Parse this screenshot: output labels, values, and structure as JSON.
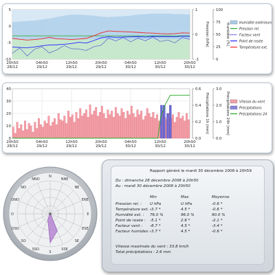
{
  "colors": {
    "humidity": "#7fb2e0",
    "pressure": "#22aa22",
    "wind_factor": "#3333cc",
    "dew_point": "#2222ff",
    "temperature": "#ee2222",
    "wind_speed": "#ee6677",
    "precip": "#4444cc",
    "precip24": "#22aa22"
  },
  "chart_data": [
    {
      "type": "line",
      "x_ticks": [
        "20h50\n28/12",
        "04h50\n29/12",
        "12h50\n29/12",
        "20h50\n29/12",
        "04h50\n30/12",
        "12h50\n30/12",
        "20h50\n30/12"
      ],
      "y_left_ticks": [
        "-10",
        "-5",
        "0",
        "5"
      ],
      "y_right1_ticks": [
        "-1",
        "0",
        "1"
      ],
      "y_right1_label": "Pression (hPa)",
      "y_right2_ticks": [
        "0",
        "25",
        "50",
        "75",
        "100"
      ],
      "y_right2_label": "Humidité (%)",
      "legend": [
        "Humidité extérieure",
        "Pression rel.",
        "Facteur vent",
        "Point de rosée",
        "Température ext."
      ],
      "series": [
        {
          "name": "Humidité extérieure",
          "values": [
            75,
            76,
            77,
            78,
            80,
            82,
            85,
            88,
            90,
            90,
            89,
            88,
            86,
            85,
            86,
            87,
            88,
            90,
            91,
            92,
            92,
            92,
            91,
            91,
            90
          ]
        },
        {
          "name": "Température ext.",
          "values": [
            -1.6,
            -2.0,
            -2.3,
            -2.1,
            -1.8,
            -1.2,
            -1.8,
            -1.9,
            -2.1,
            -1.9,
            -1.6,
            -0.6,
            0.6,
            1.4,
            1.2,
            1.1,
            1.0,
            0.8,
            0.6,
            0.5,
            0.3,
            0.2,
            0.3,
            0.6,
            0.5
          ]
        },
        {
          "name": "Point de rosée",
          "values": [
            -5.1,
            -5.3,
            -5.4,
            -5.1,
            -4.6,
            -4.3,
            -4.2,
            -4.0,
            -3.7,
            -3.2,
            -3.5,
            -2.5,
            -1.4,
            -1.0,
            -1.2,
            -1.1,
            -1.0,
            -0.9,
            -1.1,
            -0.8,
            -0.9,
            -0.9,
            -1.0,
            -0.7,
            -0.8
          ]
        },
        {
          "name": "Facteur vent",
          "values": [
            -7.6,
            -5.5,
            -8.7,
            -6.0,
            -5.0,
            -7.5,
            -6.3,
            -4.5,
            -5.8,
            -5.9,
            -6.5,
            -5.0,
            -4.4,
            -1.5,
            -2.7,
            -1.2,
            -3.0,
            -1.5,
            -2.6,
            -1.0,
            -2.9,
            -2.3,
            -3.4,
            -1.2,
            -2.0
          ]
        }
      ]
    },
    {
      "type": "bar",
      "x_ticks": [
        "20h50\n28/12",
        "04h50\n29/12",
        "12h50\n29/12",
        "20h50\n29/12",
        "04h50\n30/12",
        "12h50\n30/12",
        "20h50\n30/12"
      ],
      "y_left_ticks": [
        "0",
        "10",
        "20",
        "30",
        "40"
      ],
      "y_right1_ticks": [
        "0.0",
        "0.2",
        "0.4",
        "0.6"
      ],
      "y_right1_label": "Précipitations 1h (mm)",
      "y_right2_ticks": [
        "0.0",
        "1.0",
        "2.0",
        "3.0"
      ],
      "y_right2_label": "Précipitations 24h (mm)",
      "legend": [
        "Vitesse du vent",
        "Précipitations",
        "Précipitations 24"
      ],
      "series": [
        {
          "name": "Vitesse du vent",
          "values": [
            9,
            4,
            13,
            8,
            11,
            6,
            14,
            7,
            12,
            10,
            5,
            13,
            8,
            16,
            11,
            9,
            14,
            12,
            18,
            10,
            13,
            16,
            11,
            20,
            15,
            14,
            18,
            12,
            22,
            17,
            19,
            13,
            21,
            16,
            24,
            18,
            20,
            23,
            17,
            27,
            19,
            22,
            25,
            18,
            21,
            26,
            20,
            16,
            23,
            19,
            22,
            17,
            25,
            20,
            18,
            24,
            21,
            16,
            22,
            19,
            26,
            20,
            17,
            23,
            19,
            22,
            15,
            18,
            24,
            20,
            17,
            21,
            16,
            19,
            14,
            18,
            22,
            17,
            15,
            20,
            16,
            19,
            13,
            17,
            21,
            16,
            18,
            14,
            20,
            15
          ]
        },
        {
          "name": "Précipitations",
          "values": [
            {
              "x": 0.835,
              "v": 0.4
            },
            {
              "x": 0.85,
              "v": 0.4
            },
            {
              "x": 0.87,
              "v": 0.3
            },
            {
              "x": 0.885,
              "v": 0.4
            }
          ]
        },
        {
          "name": "Précipitations 24",
          "values": [
            {
              "x": 0.0,
              "v": 0.0
            },
            {
              "x": 0.82,
              "v": 0.0
            },
            {
              "x": 0.835,
              "v": 1.2
            },
            {
              "x": 0.86,
              "v": 2.0
            },
            {
              "x": 0.89,
              "v": 2.6
            },
            {
              "x": 1.0,
              "v": 2.6
            }
          ]
        }
      ]
    },
    {
      "type": "polar",
      "directions": [
        "N",
        "NNE",
        "NE",
        "ENE",
        "E",
        "ESE",
        "SE",
        "SSE",
        "S",
        "SSO",
        "SO",
        "OSO",
        "O",
        "ONO",
        "NO",
        "NNO"
      ],
      "direction_labels_shown": [
        "N",
        "NNE",
        "NE",
        "ENE",
        "E",
        "ESE",
        "SE",
        "SSE",
        "S",
        "SSO",
        "SO",
        "OSO",
        "O",
        "ONO",
        "NO",
        "NNO"
      ],
      "frequencies": [
        0,
        0,
        0,
        0,
        0,
        0,
        0,
        0.45,
        0.7,
        0.15,
        0,
        0,
        0,
        0,
        0,
        0
      ]
    }
  ],
  "report": {
    "title": "Rapport généré le mardi 30 décembre 2008 à 20h59",
    "du": "Du : dimanche 28 décembre 2008 à 20h50",
    "au": "Au : mardi 30 décembre 2008 à 20h50",
    "col_min": "Min",
    "col_max": "Max",
    "col_avg": "Moyenne",
    "rows": [
      {
        "label": "Pression rel. :",
        "min": "U hPa",
        "max": "U hPa",
        "avg": "-0.6 *"
      },
      {
        "label": "Température ext. :",
        "min": "-3.7 *",
        "max": "4.5 *",
        "avg": "-0.6 *"
      },
      {
        "label": "Humidité ext. :",
        "min": "76.0 %",
        "max": "96.0 %",
        "avg": "90.0 %"
      },
      {
        "label": "Point de rosée :",
        "min": "-5.1 *",
        "max": "2.6 *",
        "avg": "-2.1 *"
      },
      {
        "label": "Facteur vent :",
        "min": "-8.7 *",
        "max": "4.5 *",
        "avg": "-3.4 *"
      },
      {
        "label": "Facteur humidex :",
        "min": "-3.7 *",
        "max": "4.5 *",
        "avg": "-0.6 *"
      }
    ],
    "wind_max": "Vitesse maximale du vent : 33.8 km/h",
    "total_precip": "Total précipitations : 2.6 mm"
  }
}
